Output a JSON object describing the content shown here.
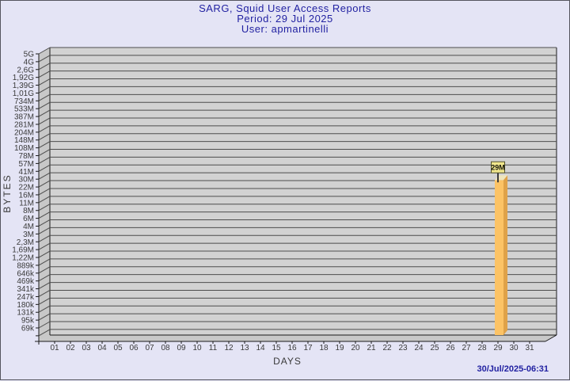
{
  "header": {
    "title": "SARG, Squid User Access Reports",
    "period": "Period: 29 Jul 2025",
    "user": "User: apmartinelli"
  },
  "footer": {
    "generated": "30/Jul/2025-06:31"
  },
  "chart_data": {
    "type": "bar",
    "style": "3d-bar",
    "title": "SARG, Squid User Access Reports",
    "subtitle": "Period: 29 Jul 2025",
    "user": "apmartinelli",
    "xlabel": "DAYS",
    "ylabel": "BYTES",
    "grid": "horizontal-only",
    "x_tick_labels": [
      "01",
      "02",
      "03",
      "04",
      "05",
      "06",
      "07",
      "08",
      "09",
      "10",
      "11",
      "12",
      "13",
      "14",
      "15",
      "16",
      "17",
      "18",
      "19",
      "20",
      "21",
      "22",
      "23",
      "24",
      "25",
      "26",
      "27",
      "28",
      "29",
      "30",
      "31"
    ],
    "y_axis": {
      "scale": "log",
      "unit": "bytes",
      "top_value_bytes": 5000000000,
      "bottom_value_bytes": 69000,
      "tick_labels_top_to_bottom": [
        "5G",
        "4G",
        "2,6G",
        "1,92G",
        "1,39G",
        "1,01G",
        "734M",
        "533M",
        "387M",
        "281M",
        "204M",
        "148M",
        "108M",
        "78M",
        "57M",
        "41M",
        "30M",
        "22M",
        "16M",
        "11M",
        "8M",
        "6M",
        "4M",
        "3M",
        "2,3M",
        "1,69M",
        "1,22M",
        "889k",
        "646k",
        "469k",
        "341k",
        "247k",
        "180k",
        "131k",
        "95k",
        "69k"
      ]
    },
    "bars": [
      {
        "day": "29",
        "label": "29M",
        "value_bytes": 29000000
      }
    ]
  },
  "colors": {
    "background": "#e4e4f5",
    "page_border": "#55555e",
    "plot_fill": "#d2d2d2",
    "wall_fill": "#c8c8c8",
    "grid_line": "#4d4d4d",
    "axis_line": "#1a1a1a",
    "title_text": "#2222a2",
    "tick_text": "#3a3a3a",
    "bar_front": "#fcc365",
    "bar_side": "#dfa249",
    "bar_top": "#efe5bc",
    "flag_fill": "#f0e68c",
    "flag_border": "#52522e",
    "flag_stem": "#3a3a3a"
  }
}
